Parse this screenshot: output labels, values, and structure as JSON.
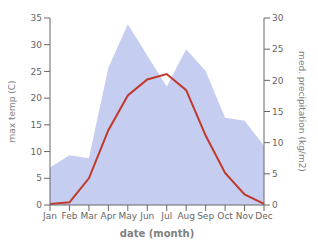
{
  "chart_data": {
    "type": "line",
    "xlabel": "date (month)",
    "ylabel": "max temp (C)",
    "y2label": "med. precipitation (kg/m2)",
    "categories": [
      "Jan",
      "Feb",
      "Mar",
      "Apr",
      "May",
      "Jun",
      "Jul",
      "Aug",
      "Sep",
      "Oct",
      "Nov",
      "Dec"
    ],
    "series": [
      {
        "type": "area",
        "color": "#c5cdf0",
        "axis": "y2",
        "values": [
          6.0,
          8.0,
          7.5,
          22.0,
          29.0,
          24.0,
          19.0,
          25.0,
          21.5,
          14.0,
          13.5,
          9.5
        ]
      },
      {
        "type": "line",
        "color": "#c0392b",
        "values": [
          0.2,
          0.5,
          5.0,
          14.0,
          20.5,
          23.5,
          24.5,
          21.5,
          13.0,
          6.0,
          2.0,
          0.2
        ]
      }
    ],
    "ylim": [
      0,
      35
    ],
    "yticks": [
      0,
      5,
      10,
      15,
      20,
      25,
      30,
      35
    ],
    "y2lim": [
      0,
      30
    ],
    "y2ticks": [
      0,
      5,
      10,
      15,
      20,
      25,
      30
    ],
    "grid": false
  }
}
